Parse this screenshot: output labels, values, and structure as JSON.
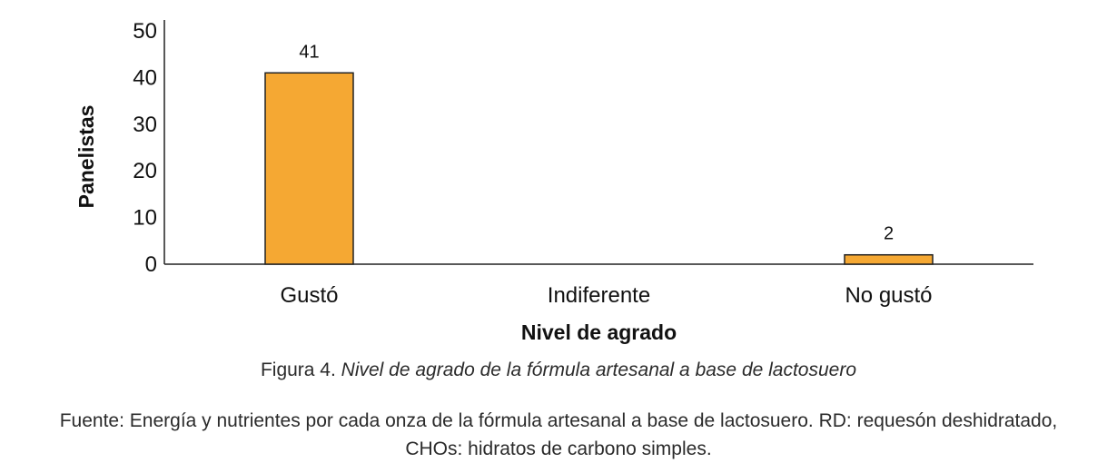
{
  "chart_data": {
    "type": "bar",
    "categories": [
      "Gustó",
      "Indiferente",
      "No gustó"
    ],
    "values": [
      41,
      0,
      2
    ],
    "data_labels": [
      "41",
      "",
      "2"
    ],
    "xlabel": "Nivel de agrado",
    "ylabel": "Panelistas",
    "ylim": [
      0,
      50
    ],
    "yticks": [
      0,
      10,
      20,
      30,
      40,
      50
    ],
    "grid": false,
    "bar_color": "#F5A833"
  },
  "caption": {
    "prefix": "Figura 4.",
    "title": "Nivel de agrado de la fórmula artesanal a base de lactosuero"
  },
  "source_note": {
    "line1": "Fuente: Energía y nutrientes por cada onza de la fórmula artesanal a base de lactosuero. RD: requesón deshidratado,",
    "line2": "CHOs: hidratos de carbono simples."
  }
}
